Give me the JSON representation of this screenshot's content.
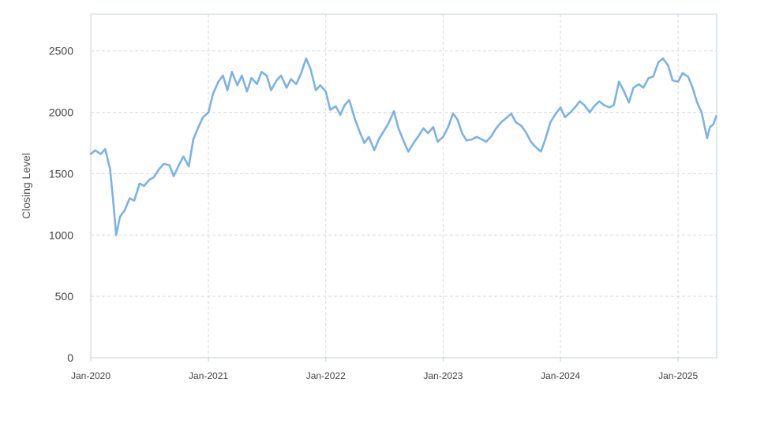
{
  "chart_data": {
    "type": "line",
    "title": "",
    "xlabel": "",
    "ylabel": "Closing Level",
    "x_range": [
      "2020-01-01",
      "2025-05-01"
    ],
    "ylim": [
      0,
      2800
    ],
    "y_ticks": [
      0,
      500,
      1000,
      1500,
      2000,
      2500
    ],
    "x_ticks": [
      {
        "date": "2020-01-01",
        "label": "Jan-2020"
      },
      {
        "date": "2021-01-01",
        "label": "Jan-2021"
      },
      {
        "date": "2022-01-01",
        "label": "Jan-2022"
      },
      {
        "date": "2023-01-01",
        "label": "Jan-2023"
      },
      {
        "date": "2024-01-01",
        "label": "Jan-2024"
      },
      {
        "date": "2025-01-01",
        "label": "Jan-2025"
      }
    ],
    "grid": true,
    "line_color": "#7cb2e6",
    "series": [
      {
        "points": [
          [
            "2020-01-01",
            1660
          ],
          [
            "2020-01-15",
            1690
          ],
          [
            "2020-02-01",
            1660
          ],
          [
            "2020-02-15",
            1700
          ],
          [
            "2020-03-01",
            1540
          ],
          [
            "2020-03-10",
            1300
          ],
          [
            "2020-03-20",
            1000
          ],
          [
            "2020-04-01",
            1150
          ],
          [
            "2020-04-15",
            1200
          ],
          [
            "2020-05-01",
            1300
          ],
          [
            "2020-05-15",
            1280
          ],
          [
            "2020-06-01",
            1420
          ],
          [
            "2020-06-15",
            1400
          ],
          [
            "2020-07-01",
            1450
          ],
          [
            "2020-07-15",
            1470
          ],
          [
            "2020-08-01",
            1540
          ],
          [
            "2020-08-15",
            1580
          ],
          [
            "2020-09-01",
            1570
          ],
          [
            "2020-09-15",
            1480
          ],
          [
            "2020-10-01",
            1570
          ],
          [
            "2020-10-15",
            1640
          ],
          [
            "2020-11-01",
            1560
          ],
          [
            "2020-11-15",
            1780
          ],
          [
            "2020-12-01",
            1880
          ],
          [
            "2020-12-15",
            1960
          ],
          [
            "2021-01-01",
            2000
          ],
          [
            "2021-01-15",
            2150
          ],
          [
            "2021-02-01",
            2250
          ],
          [
            "2021-02-15",
            2300
          ],
          [
            "2021-03-01",
            2180
          ],
          [
            "2021-03-15",
            2330
          ],
          [
            "2021-04-01",
            2220
          ],
          [
            "2021-04-15",
            2300
          ],
          [
            "2021-05-01",
            2170
          ],
          [
            "2021-05-15",
            2280
          ],
          [
            "2021-06-01",
            2230
          ],
          [
            "2021-06-15",
            2330
          ],
          [
            "2021-07-01",
            2300
          ],
          [
            "2021-07-15",
            2180
          ],
          [
            "2021-08-01",
            2260
          ],
          [
            "2021-08-15",
            2300
          ],
          [
            "2021-09-01",
            2200
          ],
          [
            "2021-09-15",
            2270
          ],
          [
            "2021-10-01",
            2230
          ],
          [
            "2021-10-15",
            2310
          ],
          [
            "2021-11-01",
            2440
          ],
          [
            "2021-11-15",
            2350
          ],
          [
            "2021-12-01",
            2180
          ],
          [
            "2021-12-15",
            2220
          ],
          [
            "2022-01-01",
            2170
          ],
          [
            "2022-01-15",
            2020
          ],
          [
            "2022-02-01",
            2050
          ],
          [
            "2022-02-15",
            1980
          ],
          [
            "2022-03-01",
            2060
          ],
          [
            "2022-03-15",
            2100
          ],
          [
            "2022-04-01",
            1950
          ],
          [
            "2022-04-15",
            1850
          ],
          [
            "2022-05-01",
            1750
          ],
          [
            "2022-05-15",
            1800
          ],
          [
            "2022-06-01",
            1690
          ],
          [
            "2022-06-15",
            1780
          ],
          [
            "2022-07-01",
            1850
          ],
          [
            "2022-07-15",
            1910
          ],
          [
            "2022-08-01",
            2010
          ],
          [
            "2022-08-15",
            1870
          ],
          [
            "2022-09-01",
            1760
          ],
          [
            "2022-09-15",
            1680
          ],
          [
            "2022-10-01",
            1750
          ],
          [
            "2022-10-15",
            1800
          ],
          [
            "2022-11-01",
            1870
          ],
          [
            "2022-11-15",
            1830
          ],
          [
            "2022-12-01",
            1880
          ],
          [
            "2022-12-15",
            1760
          ],
          [
            "2023-01-01",
            1800
          ],
          [
            "2023-01-15",
            1870
          ],
          [
            "2023-02-01",
            1990
          ],
          [
            "2023-02-15",
            1940
          ],
          [
            "2023-03-01",
            1830
          ],
          [
            "2023-03-15",
            1770
          ],
          [
            "2023-04-01",
            1780
          ],
          [
            "2023-04-15",
            1800
          ],
          [
            "2023-05-01",
            1780
          ],
          [
            "2023-05-15",
            1760
          ],
          [
            "2023-06-01",
            1810
          ],
          [
            "2023-06-15",
            1870
          ],
          [
            "2023-07-01",
            1920
          ],
          [
            "2023-07-15",
            1950
          ],
          [
            "2023-08-01",
            1990
          ],
          [
            "2023-08-15",
            1920
          ],
          [
            "2023-09-01",
            1890
          ],
          [
            "2023-09-15",
            1840
          ],
          [
            "2023-10-01",
            1760
          ],
          [
            "2023-10-15",
            1720
          ],
          [
            "2023-11-01",
            1680
          ],
          [
            "2023-11-15",
            1780
          ],
          [
            "2023-12-01",
            1920
          ],
          [
            "2023-12-15",
            1980
          ],
          [
            "2024-01-01",
            2040
          ],
          [
            "2024-01-15",
            1960
          ],
          [
            "2024-02-01",
            2000
          ],
          [
            "2024-02-15",
            2040
          ],
          [
            "2024-03-01",
            2090
          ],
          [
            "2024-03-15",
            2060
          ],
          [
            "2024-04-01",
            2000
          ],
          [
            "2024-04-15",
            2050
          ],
          [
            "2024-05-01",
            2090
          ],
          [
            "2024-05-15",
            2060
          ],
          [
            "2024-06-01",
            2040
          ],
          [
            "2024-06-15",
            2060
          ],
          [
            "2024-07-01",
            2250
          ],
          [
            "2024-07-15",
            2180
          ],
          [
            "2024-08-01",
            2080
          ],
          [
            "2024-08-15",
            2200
          ],
          [
            "2024-09-01",
            2230
          ],
          [
            "2024-09-15",
            2200
          ],
          [
            "2024-10-01",
            2280
          ],
          [
            "2024-10-15",
            2290
          ],
          [
            "2024-11-01",
            2410
          ],
          [
            "2024-11-15",
            2440
          ],
          [
            "2024-12-01",
            2380
          ],
          [
            "2024-12-15",
            2260
          ],
          [
            "2025-01-01",
            2250
          ],
          [
            "2025-01-15",
            2320
          ],
          [
            "2025-02-01",
            2290
          ],
          [
            "2025-02-15",
            2200
          ],
          [
            "2025-03-01",
            2080
          ],
          [
            "2025-03-15",
            2000
          ],
          [
            "2025-04-01",
            1790
          ],
          [
            "2025-04-10",
            1880
          ],
          [
            "2025-04-20",
            1900
          ],
          [
            "2025-04-30",
            1970
          ]
        ]
      }
    ]
  }
}
